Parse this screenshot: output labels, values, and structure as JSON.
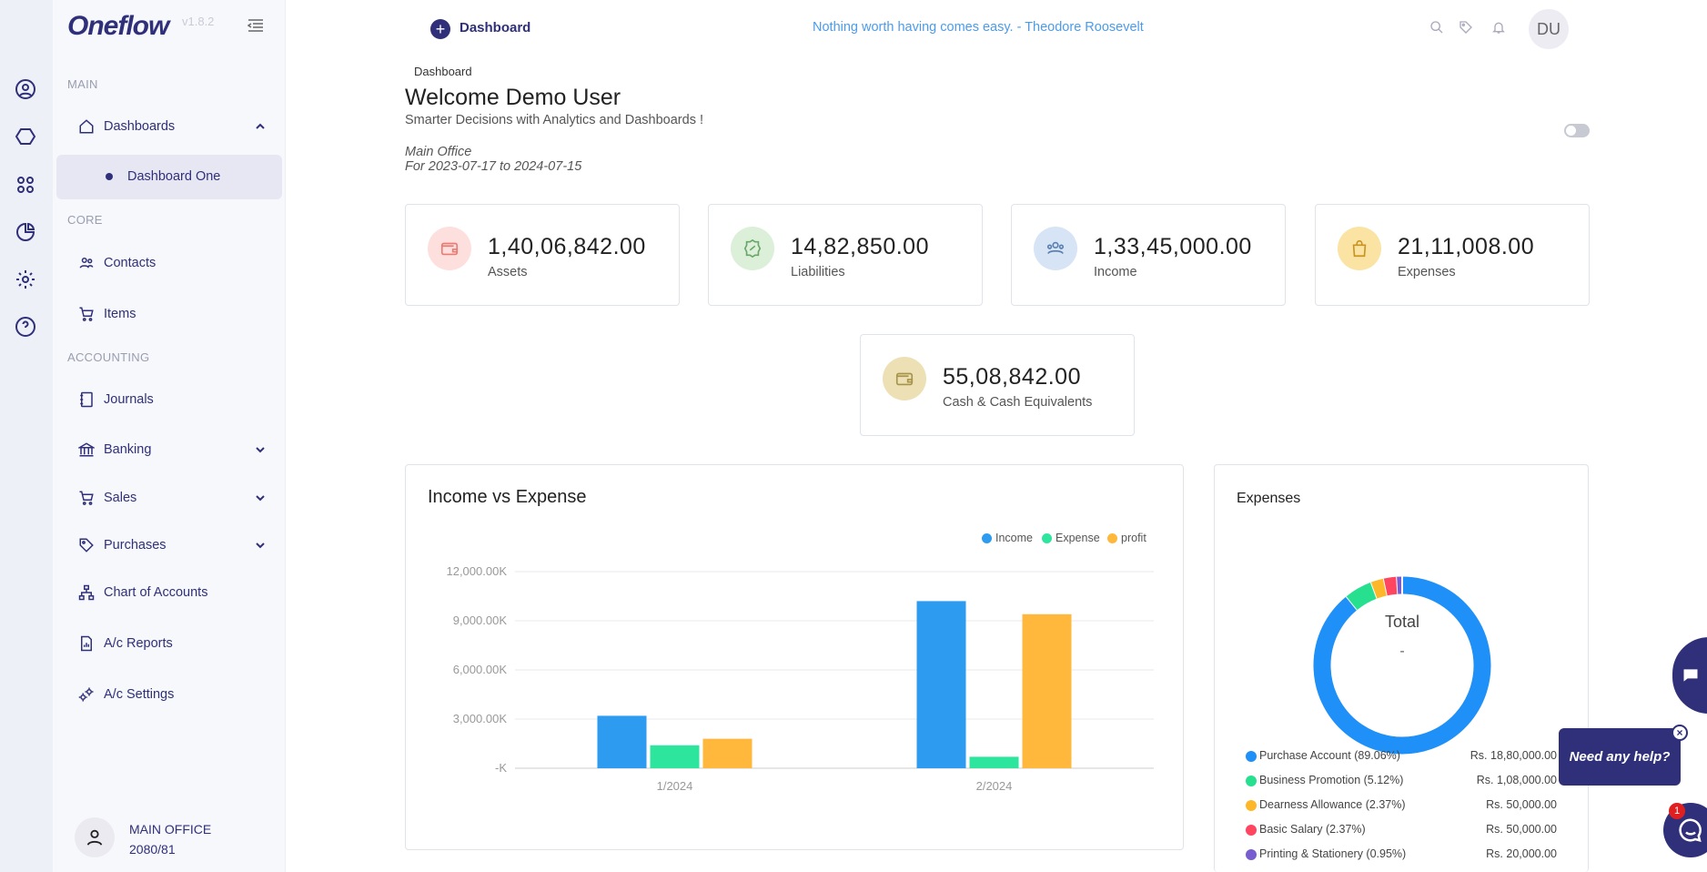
{
  "app": {
    "version": "v1.8.2",
    "logo_text": "Oneflow"
  },
  "sidebar": {
    "sections": {
      "main": "MAIN",
      "core": "CORE",
      "accounting": "ACCOUNTING"
    },
    "items": {
      "dashboards": "Dashboards",
      "dashboard_one": "Dashboard One",
      "contacts": "Contacts",
      "items": "Items",
      "journals": "Journals",
      "banking": "Banking",
      "sales": "Sales",
      "purchases": "Purchases",
      "chart_of_accounts": "Chart of Accounts",
      "ac_reports": "A/c Reports",
      "ac_settings": "A/c Settings"
    },
    "office": {
      "name": "MAIN OFFICE",
      "year": "2080/81"
    }
  },
  "topbar": {
    "title": "Dashboard",
    "quote": "Nothing worth having comes easy. - Theodore Roosevelt",
    "avatar": "DU"
  },
  "page": {
    "breadcrumb": "Dashboard",
    "welcome": "Welcome Demo User",
    "tagline": "Smarter Decisions with Analytics and Dashboards !",
    "office": "Main Office",
    "period": "For 2023-07-17 to 2024-07-15"
  },
  "cards": {
    "assets": {
      "value": "1,40,06,842.00",
      "label": "Assets",
      "color": "#fde0dd"
    },
    "liabilities": {
      "value": "14,82,850.00",
      "label": "Liabilities",
      "color": "#dcefd9"
    },
    "income": {
      "value": "1,33,45,000.00",
      "label": "Income",
      "color": "#d6e4f5"
    },
    "expenses": {
      "value": "21,11,008.00",
      "label": "Expenses",
      "color": "#fbe3a4"
    },
    "cash": {
      "value": "55,08,842.00",
      "label": "Cash & Cash Equivalents",
      "color": "#ece0b4"
    }
  },
  "income_chart": {
    "title": "Income vs Expense",
    "legend": {
      "income": "Income",
      "expense": "Expense",
      "profit": "profit"
    },
    "colors": {
      "income": "#2d9bf0",
      "expense": "#2ee59d",
      "profit": "#ffb83c"
    },
    "y_ticks": [
      "12,000.00K",
      "9,000.00K",
      "6,000.00K",
      "3,000.00K",
      "-K"
    ],
    "x_labels": [
      "1/2024",
      "2/2024"
    ]
  },
  "chart_data": {
    "type": "bar",
    "categories": [
      "1/2024",
      "2/2024"
    ],
    "series": [
      {
        "name": "Income",
        "values": [
          3200,
          10200
        ]
      },
      {
        "name": "Expense",
        "values": [
          1400,
          700
        ]
      },
      {
        "name": "profit",
        "values": [
          1800,
          9400
        ]
      }
    ],
    "title": "Income vs Expense",
    "ylim": [
      0,
      12000
    ],
    "grid": true,
    "legend": "top-right"
  },
  "expenses_chart": {
    "title": "Expenses",
    "center_label": "Total",
    "center_value": "-",
    "items": [
      {
        "name": "Purchase Account (89.06%)",
        "amount": "Rs. 18,80,000.00",
        "pct": 89.06,
        "color": "#1e90f7"
      },
      {
        "name": "Business Promotion (5.12%)",
        "amount": "Rs. 1,08,000.00",
        "pct": 5.12,
        "color": "#27e08f"
      },
      {
        "name": "Dearness Allowance (2.37%)",
        "amount": "Rs. 50,000.00",
        "pct": 2.37,
        "color": "#ffb72a"
      },
      {
        "name": "Basic Salary (2.37%)",
        "amount": "Rs. 50,000.00",
        "pct": 2.37,
        "color": "#ff4560"
      },
      {
        "name": "Printing & Stationery (0.95%)",
        "amount": "Rs. 20,000.00",
        "pct": 0.95,
        "color": "#775dd0"
      }
    ]
  },
  "help": {
    "text": "Need any help?",
    "badge": "1"
  }
}
